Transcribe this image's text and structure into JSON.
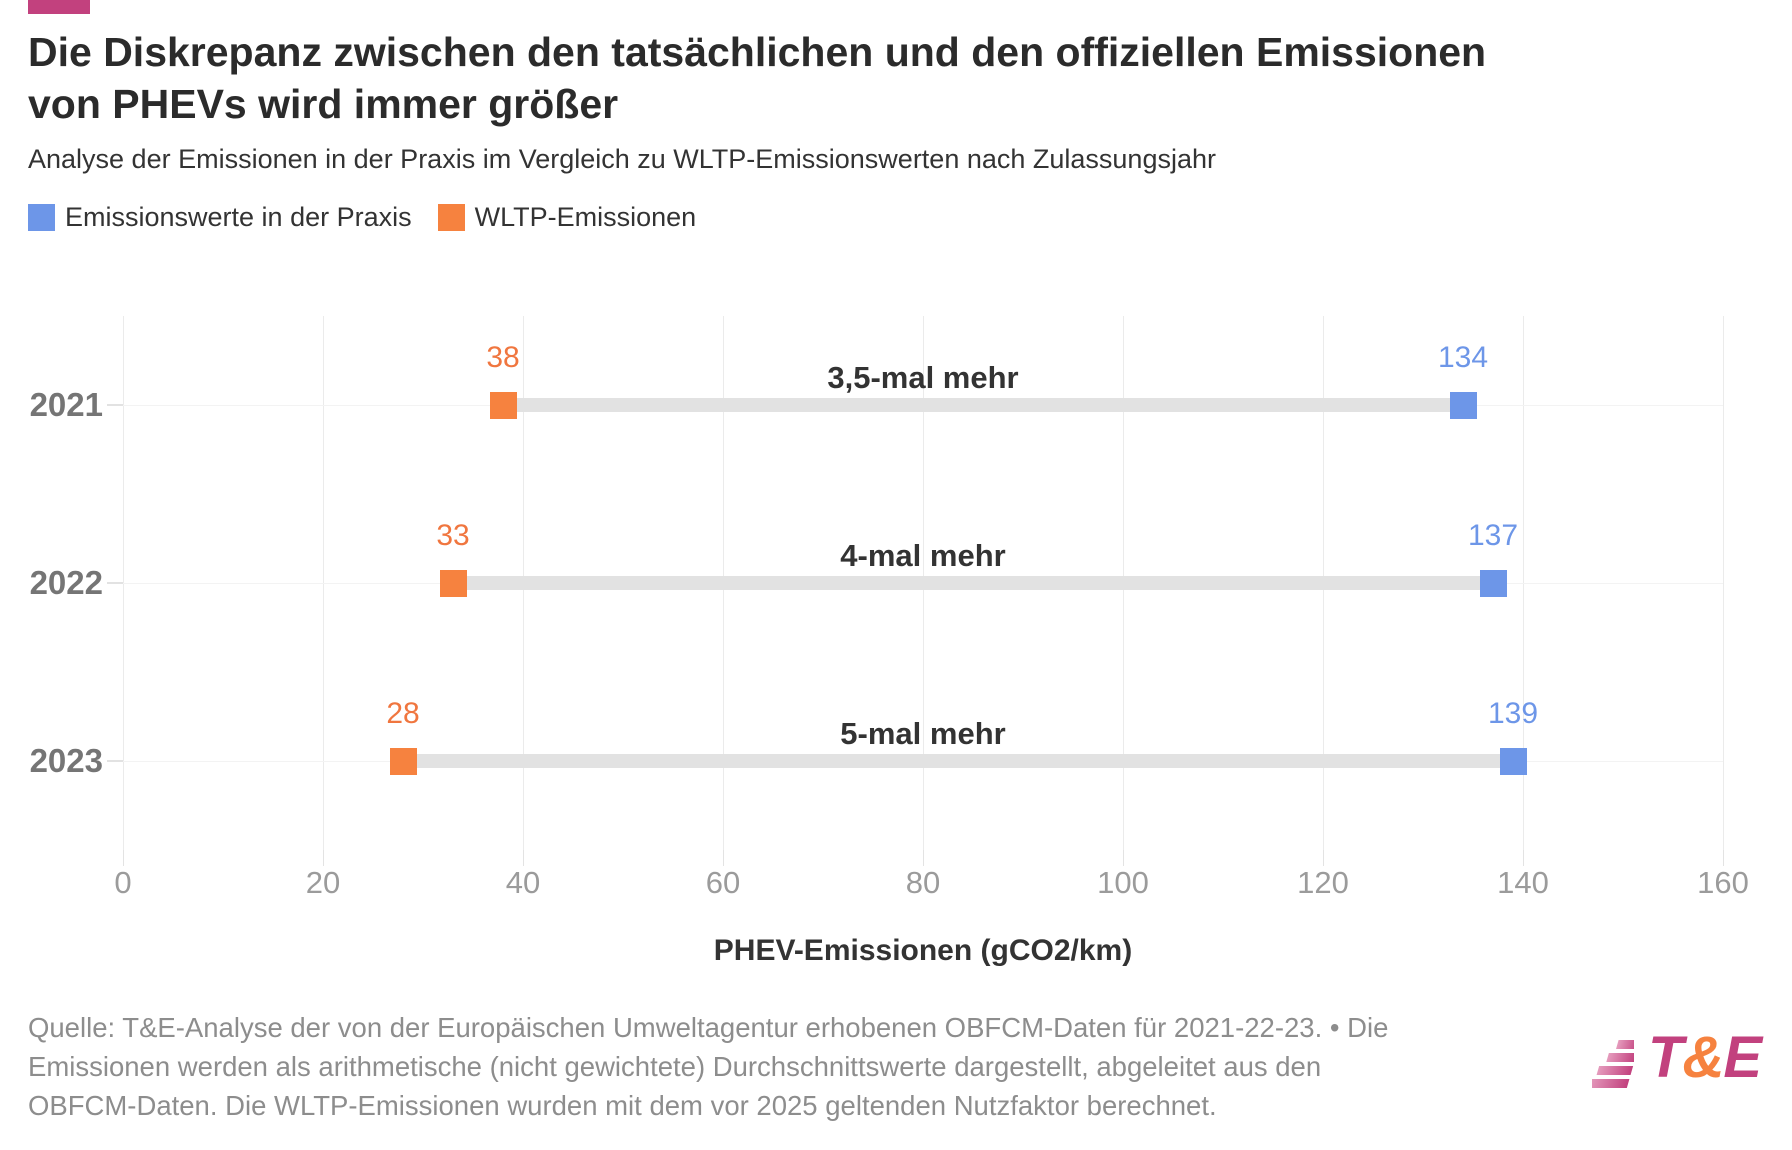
{
  "accent_color": "#c2417e",
  "header": {
    "title_line1": "Die Diskrepanz zwischen den tatsächlichen und den offiziellen Emissionen",
    "title_line2": "von PHEVs wird immer größer",
    "subtitle": "Analyse der Emissionen in der Praxis im Vergleich zu WLTP-Emissionswerten nach Zulassungsjahr"
  },
  "legend": {
    "items": [
      {
        "label": "Emissionswerte in der Praxis",
        "color": "#6d96e8"
      },
      {
        "label": "WLTP-Emissionen",
        "color": "#f6823f"
      }
    ]
  },
  "chart_data": {
    "type": "dumbbell",
    "categories": [
      "2021",
      "2022",
      "2023"
    ],
    "series": [
      {
        "name": "Emissionswerte in der Praxis",
        "color": "#6d96e8",
        "values": [
          134,
          137,
          139
        ]
      },
      {
        "name": "WLTP-Emissionen",
        "color": "#f0763f",
        "values": [
          38,
          33,
          28
        ]
      }
    ],
    "annotations": [
      "3,5-mal mehr",
      "4-mal mehr",
      "5-mal mehr"
    ],
    "xlabel": "PHEV-Emissionen (gCO2/km)",
    "xlim": [
      0,
      160
    ],
    "xticks": [
      0,
      20,
      40,
      60,
      80,
      100,
      120,
      140,
      160
    ],
    "grid": "vertical",
    "connector_color": "#e2e2e2",
    "legend_position": "top"
  },
  "footer": {
    "lines": [
      "Quelle: T&E-Analyse der von der Europäischen Umweltagentur erhobenen OBFCM-Daten für 2021-22-23. • Die",
      "Emissionen werden als arithmetische (nicht gewichtete) Durchschnittswerte dargestellt, abgeleitet aus den",
      "OBFCM-Daten. Die WLTP-Emissionen wurden mit dem vor 2025 geltenden Nutzfaktor berechnet."
    ]
  },
  "logo": {
    "t": "T",
    "amp": "&",
    "e": "E",
    "magenta": "#c2417e",
    "orange": "#f6823f",
    "stripe_light": "#e59cbd"
  }
}
